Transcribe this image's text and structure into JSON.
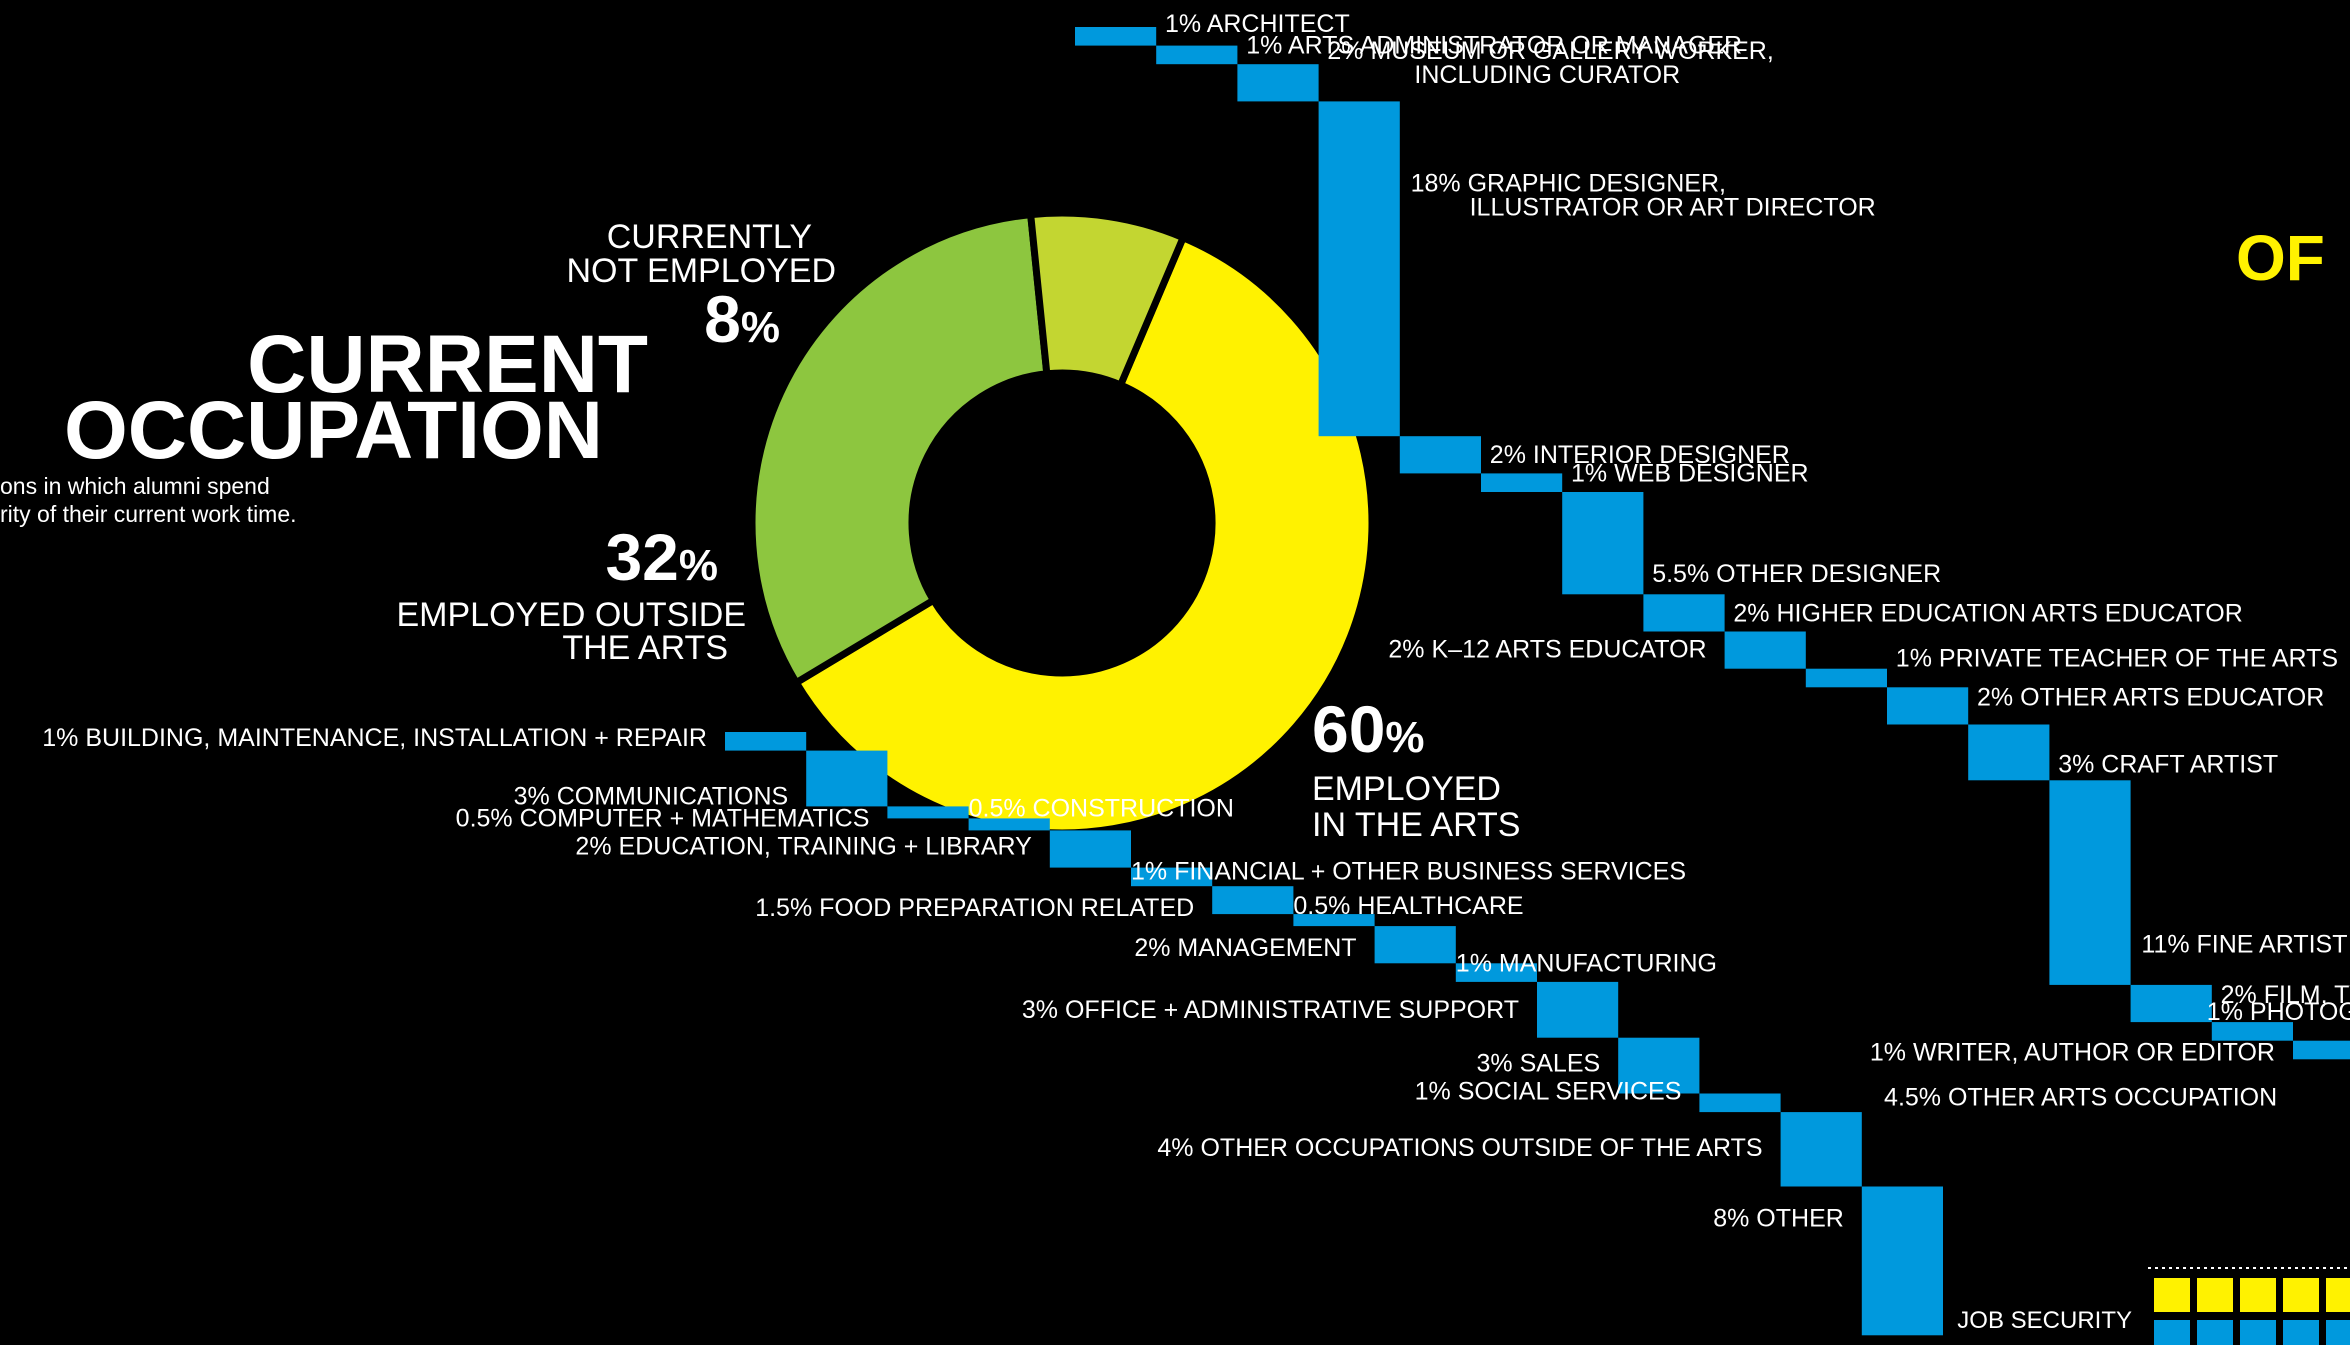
{
  "title_lines": [
    "CURRENT",
    "OCCUPATION"
  ],
  "subtitle_lines": [
    "ons in which alumni spend",
    "rity of their current work time."
  ],
  "partial_heading": "OF",
  "job_security_label": "JOB SECURITY",
  "colors": {
    "employed_in_arts": "#fff200",
    "employed_outside_arts": "#8dc63f",
    "not_employed": "#c3d631",
    "bars": "#0099dd",
    "background": "#000000"
  },
  "chart_data": [
    {
      "type": "pie",
      "title": "",
      "donut": true,
      "slices": [
        {
          "key": "in_arts",
          "value": 60,
          "pct_text": "60",
          "label_lines": [
            "EMPLOYED",
            "IN THE ARTS"
          ]
        },
        {
          "key": "outside_arts",
          "value": 32,
          "pct_text": "32",
          "label_lines": [
            "EMPLOYED OUTSIDE",
            "THE ARTS"
          ]
        },
        {
          "key": "not_employed",
          "value": 8,
          "pct_text": "8",
          "label_lines": [
            "CURRENTLY",
            "NOT EMPLOYED"
          ]
        }
      ]
    },
    {
      "type": "bar",
      "title": "",
      "description": "waterfall breakdown of the 60% employed in the arts",
      "items": [
        {
          "pct": "1%",
          "value": 1,
          "label_lines": [
            "ARCHITECT"
          ]
        },
        {
          "pct": "1%",
          "value": 1,
          "label_lines": [
            "ARTS ADMINISTRATOR OR MANAGER"
          ]
        },
        {
          "pct": "2%",
          "value": 2,
          "label_lines": [
            "MUSEUM OR GALLERY WORKER,",
            "INCLUDING CURATOR"
          ]
        },
        {
          "pct": "18%",
          "value": 18,
          "label_lines": [
            "GRAPHIC DESIGNER,",
            "ILLUSTRATOR OR ART DIRECTOR"
          ]
        },
        {
          "pct": "2%",
          "value": 2,
          "label_lines": [
            "INTERIOR DESIGNER"
          ]
        },
        {
          "pct": "1%",
          "value": 1,
          "label_lines": [
            "WEB DESIGNER"
          ]
        },
        {
          "pct": "5.5%",
          "value": 5.5,
          "label_lines": [
            "OTHER DESIGNER"
          ]
        },
        {
          "pct": "2%",
          "value": 2,
          "label_lines": [
            "HIGHER EDUCATION ARTS EDUCATOR"
          ]
        },
        {
          "pct": "2%",
          "value": 2,
          "label_lines": [
            "K–12 ARTS EDUCATOR"
          ]
        },
        {
          "pct": "1%",
          "value": 1,
          "label_lines": [
            "PRIVATE TEACHER OF THE ARTS"
          ]
        },
        {
          "pct": "2%",
          "value": 2,
          "label_lines": [
            "OTHER ARTS EDUCATOR"
          ]
        },
        {
          "pct": "3%",
          "value": 3,
          "label_lines": [
            "CRAFT ARTIST"
          ]
        },
        {
          "pct": "11%",
          "value": 11,
          "label_lines": [
            "FINE ARTIST"
          ]
        },
        {
          "pct": "2%",
          "value": 2,
          "label_lines": [
            "FILM, TV, VIDEO ARTIST"
          ]
        },
        {
          "pct": "1%",
          "value": 1,
          "label_lines": [
            "PHOTOGRAPHER"
          ]
        },
        {
          "pct": "1%",
          "value": 1,
          "label_lines": [
            "WRITER, AUTHOR OR EDITOR"
          ]
        },
        {
          "pct": "4.5%",
          "value": 4.5,
          "label_lines": [
            "OTHER ARTS OCCUPATION"
          ]
        }
      ]
    },
    {
      "type": "bar",
      "title": "",
      "description": "waterfall breakdown of the 32% employed outside the arts",
      "items": [
        {
          "pct": "1%",
          "value": 1,
          "label_lines": [
            "BUILDING, MAINTENANCE, INSTALLATION + REPAIR"
          ]
        },
        {
          "pct": "3%",
          "value": 3,
          "label_lines": [
            "COMMUNICATIONS"
          ]
        },
        {
          "pct": "0.5%",
          "value": 0.5,
          "label_lines": [
            "COMPUTER + MATHEMATICS"
          ]
        },
        {
          "pct": "0.5%",
          "value": 0.5,
          "label_lines": [
            "CONSTRUCTION"
          ]
        },
        {
          "pct": "2%",
          "value": 2,
          "label_lines": [
            "EDUCATION, TRAINING + LIBRARY"
          ]
        },
        {
          "pct": "1%",
          "value": 1,
          "label_lines": [
            "FINANCIAL + OTHER BUSINESS SERVICES"
          ]
        },
        {
          "pct": "1.5%",
          "value": 1.5,
          "label_lines": [
            "FOOD PREPARATION RELATED"
          ]
        },
        {
          "pct": "0.5%",
          "value": 0.5,
          "label_lines": [
            "HEALTHCARE"
          ]
        },
        {
          "pct": "2%",
          "value": 2,
          "label_lines": [
            "MANAGEMENT"
          ]
        },
        {
          "pct": "1%",
          "value": 1,
          "label_lines": [
            "MANUFACTURING"
          ]
        },
        {
          "pct": "3%",
          "value": 3,
          "label_lines": [
            "OFFICE + ADMINISTRATIVE SUPPORT"
          ]
        },
        {
          "pct": "3%",
          "value": 3,
          "label_lines": [
            "SALES"
          ]
        },
        {
          "pct": "1%",
          "value": 1,
          "label_lines": [
            "SOCIAL SERVICES"
          ]
        },
        {
          "pct": "4%",
          "value": 4,
          "label_lines": [
            "OTHER OCCUPATIONS OUTSIDE OF THE ARTS"
          ]
        },
        {
          "pct": "8%",
          "value": 8,
          "label_lines": [
            "OTHER"
          ]
        }
      ]
    }
  ]
}
